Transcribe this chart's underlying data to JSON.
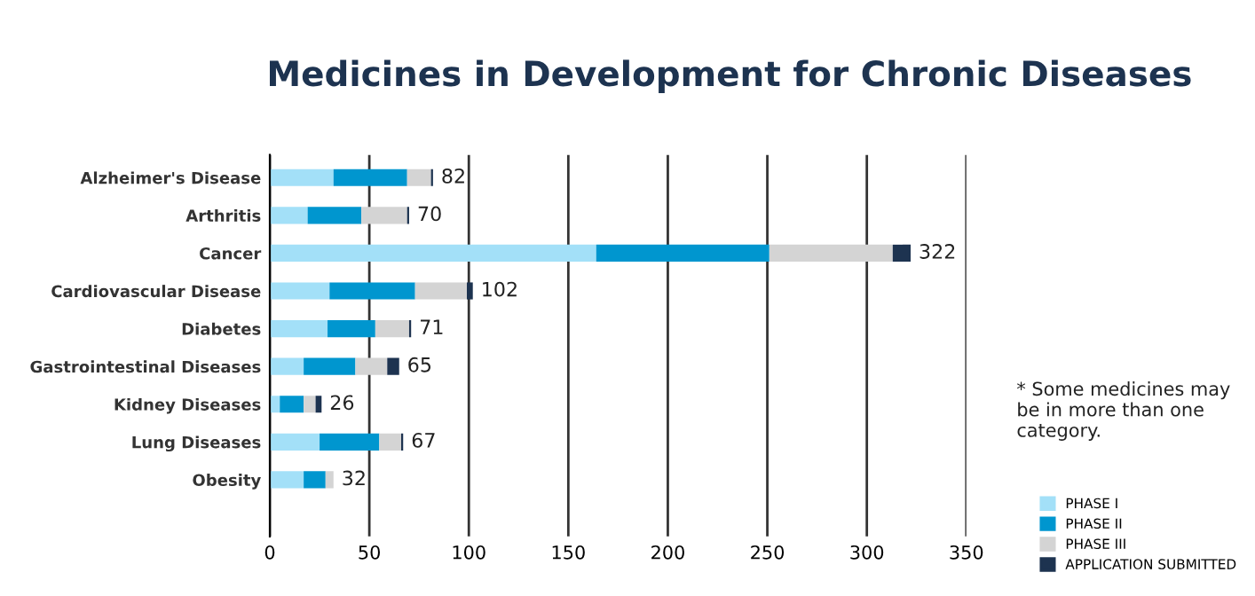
{
  "chart_data": {
    "type": "bar",
    "orientation": "horizontal",
    "stacked": true,
    "title": "Medicines in Development for Chronic Diseases",
    "categories": [
      "Alzheimer's Disease",
      "Arthritis",
      "Cancer",
      "Cardiovascular Disease",
      "Diabetes",
      "Gastrointestinal Diseases",
      "Kidney Diseases",
      "Lung Diseases",
      "Obesity"
    ],
    "series": [
      {
        "name": "PHASE I",
        "color": "#a3e0f8",
        "values": [
          32,
          19,
          164,
          30,
          29,
          17,
          5,
          25,
          17
        ]
      },
      {
        "name": "PHASE II",
        "color": "#0096cf",
        "values": [
          37,
          27,
          87,
          43,
          24,
          26,
          12,
          30,
          11
        ]
      },
      {
        "name": "PHASE III",
        "color": "#d4d4d4",
        "values": [
          12,
          23,
          62,
          26,
          17,
          16,
          6,
          11,
          4
        ]
      },
      {
        "name": "APPLICATION SUBMITTED",
        "color": "#1d3350",
        "values": [
          1,
          1,
          9,
          3,
          1,
          6,
          3,
          1,
          0
        ]
      }
    ],
    "totals": [
      "82",
      "70",
      "322",
      "102",
      "71",
      "65",
      "26",
      "67",
      "32"
    ],
    "xlim": [
      0,
      350
    ],
    "xticks": [
      0,
      50,
      100,
      150,
      200,
      250,
      300,
      350
    ],
    "grid": "x",
    "legend": "bottom right",
    "annotations": [
      "* Some medicines may be in more than one category."
    ]
  }
}
